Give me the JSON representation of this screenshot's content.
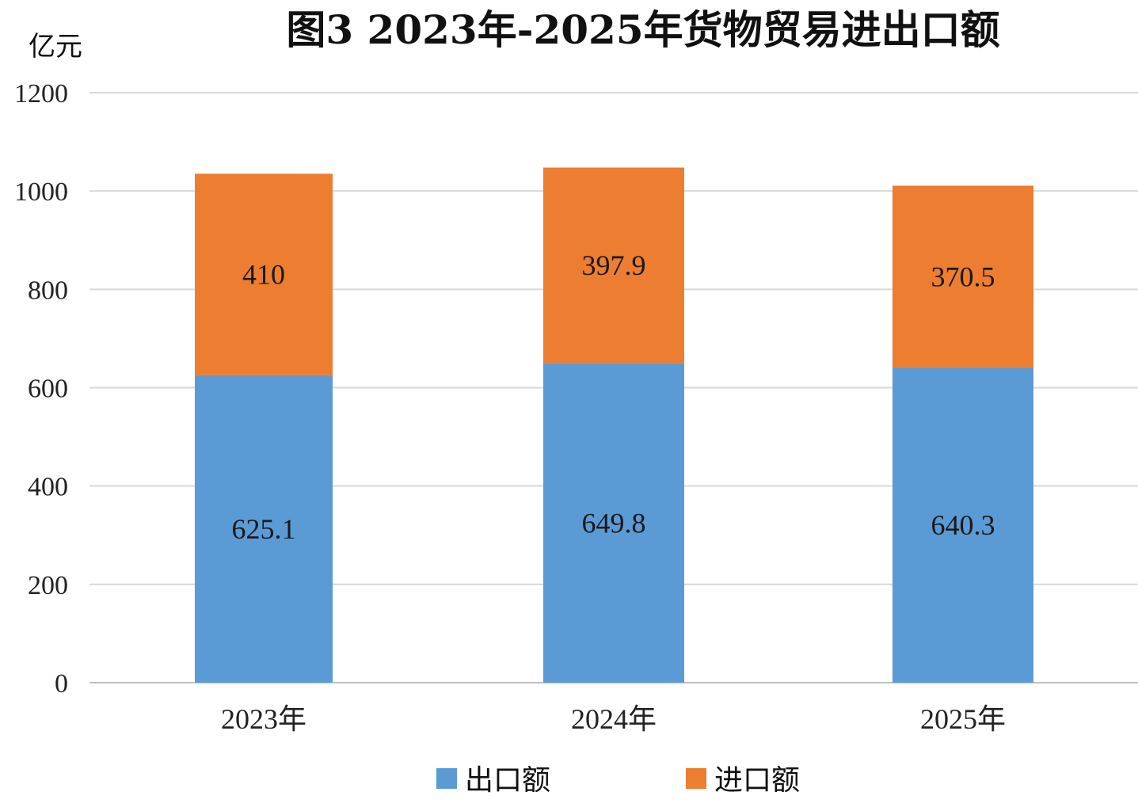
{
  "colors": {
    "export": "#5b9bd5",
    "import": "#ed7d31",
    "grid": "#d9d9d9",
    "axis": "#bfbfbf"
  },
  "chart_data": {
    "type": "bar",
    "stacked": true,
    "title": "图3  2023年-2025年货物贸易进出口额",
    "unit": "亿元",
    "xlabel": "",
    "ylabel": "",
    "categories": [
      "2023年",
      "2024年",
      "2025年"
    ],
    "series": [
      {
        "name": "出口额",
        "values": [
          625.1,
          649.8,
          640.3
        ],
        "labels": [
          "625.1",
          "649.8",
          "640.3"
        ]
      },
      {
        "name": "进口额",
        "values": [
          410,
          397.9,
          370.5
        ],
        "labels": [
          "410",
          "397.9",
          "370.5"
        ]
      }
    ],
    "ylim": [
      0,
      1200
    ],
    "yticks": [
      0,
      200,
      400,
      600,
      800,
      1000,
      1200
    ],
    "grid": true,
    "legend_position": "bottom"
  }
}
